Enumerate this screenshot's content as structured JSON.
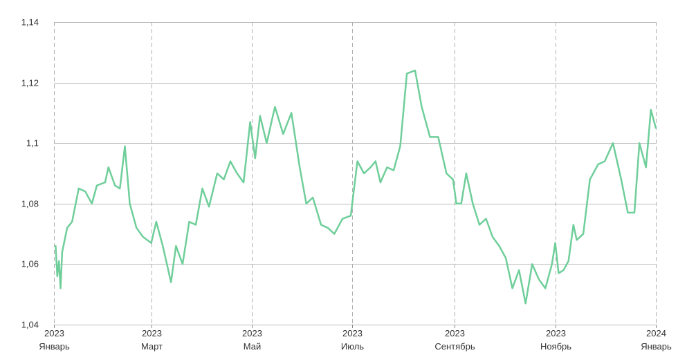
{
  "chart_data": {
    "type": "line",
    "title": "",
    "xlabel": "",
    "ylabel": "",
    "ylim": [
      1.04,
      1.14
    ],
    "yticks": [
      "1,04",
      "1,06",
      "1,08",
      "1,1",
      "1,12",
      "1,14"
    ],
    "ytick_values": [
      1.04,
      1.06,
      1.08,
      1.1,
      1.12,
      1.14
    ],
    "xlim": [
      "2023-01-01",
      "2024-01-01"
    ],
    "xticks": [
      {
        "date": "2023-01-01",
        "year": "2023",
        "month": "Январь"
      },
      {
        "date": "2023-03-01",
        "year": "2023",
        "month": "Март"
      },
      {
        "date": "2023-05-01",
        "year": "2023",
        "month": "Май"
      },
      {
        "date": "2023-07-01",
        "year": "2023",
        "month": "Июль"
      },
      {
        "date": "2023-09-01",
        "year": "2023",
        "month": "Сентябрь"
      },
      {
        "date": "2023-11-01",
        "year": "2023",
        "month": "Ноябрь"
      },
      {
        "date": "2024-01-01",
        "year": "2024",
        "month": "Январь"
      }
    ],
    "grid": {
      "horizontal": "solid",
      "vertical": "dashed"
    },
    "legend": "none",
    "colors": {
      "line": "#6fce9a",
      "hgrid": "#bbbbbb",
      "vgrid": "#b0b0b0",
      "axis": "#888888"
    },
    "series": [
      {
        "x": [
          "2023-01-02",
          "2023-01-03",
          "2023-01-04",
          "2023-01-05",
          "2023-01-06",
          "2023-01-09",
          "2023-01-12",
          "2023-01-16",
          "2023-01-20",
          "2023-01-24",
          "2023-01-27",
          "2023-02-01",
          "2023-02-03",
          "2023-02-07",
          "2023-02-10",
          "2023-02-13",
          "2023-02-16",
          "2023-02-20",
          "2023-02-24",
          "2023-03-01",
          "2023-03-04",
          "2023-03-08",
          "2023-03-13",
          "2023-03-16",
          "2023-03-20",
          "2023-03-24",
          "2023-03-28",
          "2023-04-01",
          "2023-04-05",
          "2023-04-10",
          "2023-04-14",
          "2023-04-18",
          "2023-04-22",
          "2023-04-26",
          "2023-04-30",
          "2023-05-03",
          "2023-05-06",
          "2023-05-10",
          "2023-05-15",
          "2023-05-20",
          "2023-05-25",
          "2023-05-30",
          "2023-06-03",
          "2023-06-07",
          "2023-06-12",
          "2023-06-16",
          "2023-06-20",
          "2023-06-25",
          "2023-06-30",
          "2023-07-04",
          "2023-07-08",
          "2023-07-12",
          "2023-07-15",
          "2023-07-18",
          "2023-07-22",
          "2023-07-26",
          "2023-07-30",
          "2023-08-03",
          "2023-08-08",
          "2023-08-12",
          "2023-08-17",
          "2023-08-22",
          "2023-08-27",
          "2023-08-31",
          "2023-09-02",
          "2023-09-05",
          "2023-09-08",
          "2023-09-12",
          "2023-09-16",
          "2023-09-20",
          "2023-09-24",
          "2023-09-28",
          "2023-10-02",
          "2023-10-06",
          "2023-10-10",
          "2023-10-14",
          "2023-10-18",
          "2023-10-22",
          "2023-10-26",
          "2023-10-30",
          "2023-11-01",
          "2023-11-03",
          "2023-11-06",
          "2023-11-09",
          "2023-11-12",
          "2023-11-14",
          "2023-11-18",
          "2023-11-22",
          "2023-11-27",
          "2023-12-01",
          "2023-12-06",
          "2023-12-11",
          "2023-12-15",
          "2023-12-19",
          "2023-12-22",
          "2023-12-26",
          "2023-12-29",
          "2024-01-01"
        ],
        "y": [
          1.066,
          1.056,
          1.061,
          1.052,
          1.064,
          1.072,
          1.074,
          1.085,
          1.084,
          1.08,
          1.086,
          1.087,
          1.092,
          1.086,
          1.085,
          1.099,
          1.08,
          1.072,
          1.069,
          1.067,
          1.074,
          1.066,
          1.054,
          1.066,
          1.06,
          1.074,
          1.073,
          1.085,
          1.079,
          1.09,
          1.088,
          1.094,
          1.09,
          1.087,
          1.107,
          1.095,
          1.109,
          1.1,
          1.112,
          1.103,
          1.11,
          1.092,
          1.08,
          1.082,
          1.073,
          1.072,
          1.07,
          1.075,
          1.076,
          1.094,
          1.09,
          1.092,
          1.094,
          1.087,
          1.092,
          1.091,
          1.099,
          1.123,
          1.124,
          1.112,
          1.102,
          1.102,
          1.09,
          1.088,
          1.08,
          1.08,
          1.09,
          1.08,
          1.073,
          1.075,
          1.069,
          1.066,
          1.062,
          1.052,
          1.058,
          1.047,
          1.06,
          1.055,
          1.052,
          1.06,
          1.067,
          1.057,
          1.058,
          1.061,
          1.073,
          1.068,
          1.07,
          1.088,
          1.093,
          1.094,
          1.1,
          1.088,
          1.077,
          1.077,
          1.1,
          1.092,
          1.111,
          1.105
        ]
      }
    ]
  }
}
